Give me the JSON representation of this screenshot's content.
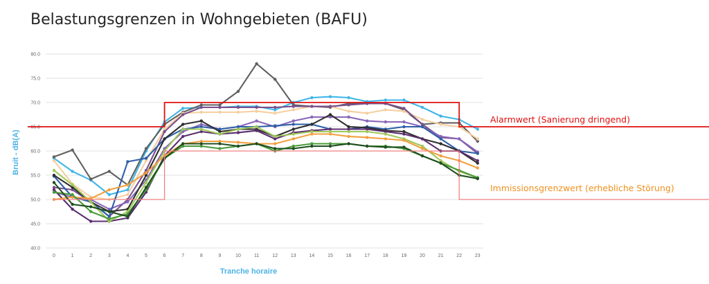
{
  "title": "Belastungsgrenzen in Wohngebieten (BAFU)",
  "chart_data": {
    "type": "line",
    "title": "Belastungsgrenzen in Wohngebieten (BAFU)",
    "xlabel": "Tranche horaire",
    "ylabel": "Bruit - dB(A)",
    "ylim": [
      40,
      80
    ],
    "yticks": [
      "40.0",
      "45.0",
      "50.0",
      "55.0",
      "60.0",
      "65.0",
      "70.0",
      "75.0",
      "80.0"
    ],
    "grid": true,
    "x": [
      0,
      1,
      2,
      3,
      4,
      5,
      6,
      7,
      8,
      9,
      10,
      11,
      12,
      13,
      14,
      15,
      16,
      17,
      18,
      19,
      20,
      21,
      22,
      23
    ],
    "colors": {
      "axis_title": "#4db3e6",
      "alarm": "#e01010",
      "immission_line": "#f08080",
      "immission_label": "#f0901e"
    },
    "series": [
      {
        "color": "#3fb6e8",
        "values": [
          58.5,
          55.8,
          54.0,
          51.0,
          52.0,
          60.0,
          66.0,
          68.8,
          69.0,
          69.0,
          69.2,
          69.2,
          68.5,
          70.0,
          71.0,
          71.2,
          71.0,
          70.2,
          70.5,
          70.5,
          69.0,
          67.2,
          66.5,
          64.5
        ]
      },
      {
        "color": "#606060",
        "values": [
          58.8,
          60.2,
          54.2,
          55.8,
          53.0,
          60.5,
          65.5,
          68.0,
          69.5,
          69.5,
          72.3,
          78.0,
          74.8,
          69.5,
          69.2,
          69.0,
          69.8,
          69.8,
          69.8,
          68.5,
          65.5,
          65.8,
          65.8,
          62.0
        ]
      },
      {
        "color": "#f5cfa0",
        "values": [
          58.0,
          53.2,
          50.5,
          50.0,
          51.0,
          58.0,
          64.5,
          67.8,
          68.0,
          68.0,
          68.0,
          68.2,
          67.8,
          68.5,
          69.2,
          69.2,
          68.2,
          67.8,
          68.5,
          68.2,
          66.5,
          65.5,
          65.0,
          62.5
        ]
      },
      {
        "color": "#7a4f8c",
        "values": [
          52.5,
          52.0,
          49.5,
          46.5,
          50.0,
          56.0,
          64.0,
          67.5,
          69.0,
          69.0,
          69.0,
          69.0,
          69.0,
          69.2,
          69.2,
          69.2,
          69.5,
          69.8,
          69.8,
          68.8,
          65.5,
          62.8,
          62.5,
          59.5
        ]
      },
      {
        "color": "#8866b8",
        "values": [
          51.5,
          50.5,
          50.0,
          48.0,
          49.5,
          54.0,
          60.5,
          64.0,
          65.5,
          64.5,
          65.0,
          66.2,
          65.0,
          66.2,
          67.0,
          67.0,
          67.0,
          66.2,
          66.0,
          66.0,
          65.0,
          63.0,
          62.5,
          59.8
        ]
      },
      {
        "color": "#2e5fa8",
        "values": [
          54.8,
          50.5,
          49.5,
          46.5,
          57.8,
          58.5,
          62.5,
          64.5,
          65.0,
          64.5,
          65.0,
          65.0,
          65.2,
          65.5,
          65.5,
          64.5,
          64.5,
          65.0,
          64.5,
          65.0,
          65.0,
          62.5,
          60.0,
          59.5
        ]
      },
      {
        "color": "#2e2e2e",
        "values": [
          55.0,
          52.5,
          49.5,
          47.5,
          48.0,
          55.0,
          62.5,
          65.5,
          66.2,
          64.0,
          64.5,
          64.5,
          63.0,
          64.5,
          65.5,
          67.5,
          65.0,
          64.8,
          64.2,
          64.0,
          62.5,
          61.5,
          60.0,
          57.5
        ]
      },
      {
        "color": "#5b2d70",
        "values": [
          52.0,
          48.0,
          45.5,
          45.5,
          46.2,
          51.5,
          59.0,
          63.0,
          64.0,
          63.5,
          63.8,
          64.2,
          62.5,
          63.8,
          64.2,
          64.5,
          64.5,
          64.5,
          64.0,
          63.5,
          62.5,
          60.0,
          60.0,
          58.0
        ]
      },
      {
        "color": "#9fc85a",
        "values": [
          56.0,
          53.0,
          49.5,
          45.5,
          47.5,
          53.5,
          60.0,
          64.5,
          64.5,
          63.5,
          64.5,
          65.0,
          63.0,
          63.5,
          64.0,
          64.0,
          64.0,
          64.0,
          63.5,
          62.5,
          61.0,
          58.0,
          55.8,
          54.5
        ]
      },
      {
        "color": "#f2a040",
        "values": [
          50.0,
          50.5,
          50.2,
          52.0,
          53.0,
          55.5,
          59.0,
          61.5,
          62.0,
          62.0,
          61.8,
          61.5,
          61.5,
          62.5,
          63.5,
          63.5,
          63.0,
          62.8,
          62.5,
          62.2,
          60.5,
          59.0,
          58.0,
          56.5
        ]
      },
      {
        "color": "#4a9a3a",
        "values": [
          51.5,
          51.0,
          47.5,
          46.0,
          47.0,
          52.0,
          58.5,
          61.0,
          61.0,
          60.5,
          61.0,
          61.5,
          60.0,
          61.0,
          61.5,
          61.5,
          61.5,
          61.0,
          61.0,
          60.5,
          59.0,
          57.5,
          56.0,
          54.5
        ]
      },
      {
        "color": "#1f4e1f",
        "values": [
          53.5,
          49.0,
          48.5,
          47.5,
          46.5,
          52.5,
          58.5,
          61.5,
          61.5,
          61.5,
          61.0,
          61.5,
          60.5,
          60.5,
          61.0,
          61.0,
          61.5,
          61.0,
          60.8,
          60.8,
          59.0,
          57.5,
          55.0,
          54.3
        ]
      }
    ],
    "annotations": [
      {
        "label": "Alarmwert  (Sanierung dringend)",
        "value": 65.0,
        "color": "#e01010"
      },
      {
        "label": "Immissionsgrenzwert (erhebliche Störung)",
        "value": 60.0,
        "color": "#f0901e"
      }
    ],
    "day_boxes": [
      {
        "name": "alarm-box",
        "from_x": 6,
        "to_x": 22,
        "night_value": 65.0,
        "day_value": 70.0,
        "color": "#e01010"
      },
      {
        "name": "immission-box",
        "from_x": 6,
        "to_x": 22,
        "night_value": 50.0,
        "day_value": 60.0,
        "color": "#f08080"
      }
    ]
  }
}
